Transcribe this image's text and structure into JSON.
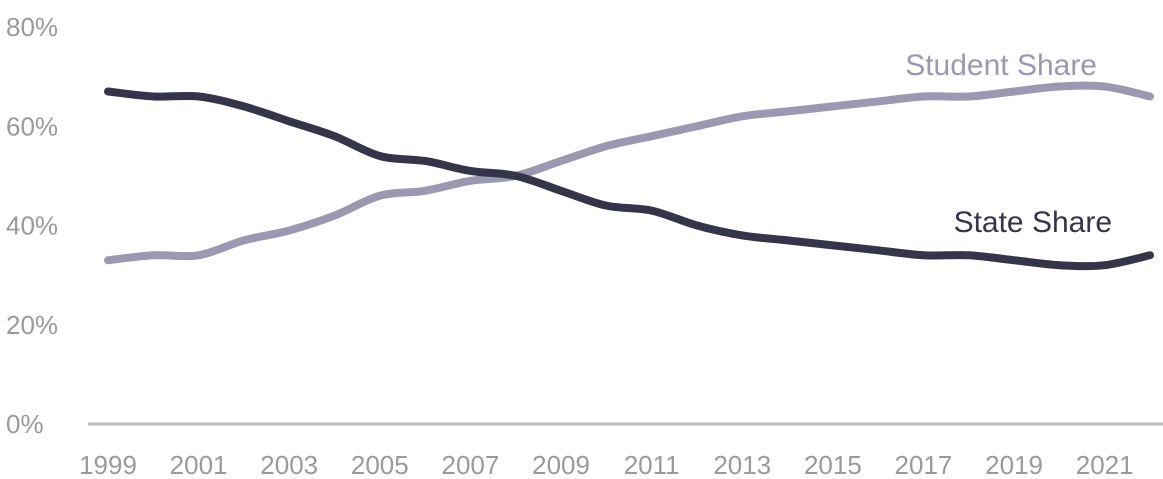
{
  "chart_data": {
    "type": "line",
    "x": [
      1999,
      2000,
      2001,
      2002,
      2003,
      2004,
      2005,
      2006,
      2007,
      2008,
      2009,
      2010,
      2011,
      2012,
      2013,
      2014,
      2015,
      2016,
      2017,
      2018,
      2019,
      2020,
      2021,
      2022
    ],
    "series": [
      {
        "name": "Student Share",
        "color": "#9b98b2",
        "values": [
          33,
          34,
          34,
          37,
          39,
          42,
          46,
          47,
          49,
          50,
          53,
          56,
          58,
          60,
          62,
          63,
          64,
          65,
          66,
          66,
          67,
          68,
          68,
          66
        ]
      },
      {
        "name": "State Share",
        "color": "#34344a",
        "values": [
          67,
          66,
          66,
          64,
          61,
          58,
          54,
          53,
          51,
          50,
          47,
          44,
          43,
          40,
          38,
          37,
          36,
          35,
          34,
          34,
          33,
          32,
          32,
          34
        ]
      }
    ],
    "y_ticks": [
      "0%",
      "20%",
      "40%",
      "60%",
      "80%"
    ],
    "x_ticks": [
      "1999",
      "2001",
      "2003",
      "2005",
      "2007",
      "2009",
      "2011",
      "2013",
      "2015",
      "2017",
      "2019",
      "2021"
    ],
    "ylim": [
      0,
      80
    ],
    "xlim": [
      1999,
      2022
    ],
    "grid": false,
    "legend": "inline-labels",
    "axis_color": "#bdbdbd",
    "tick_color": "#9a9a9a"
  }
}
